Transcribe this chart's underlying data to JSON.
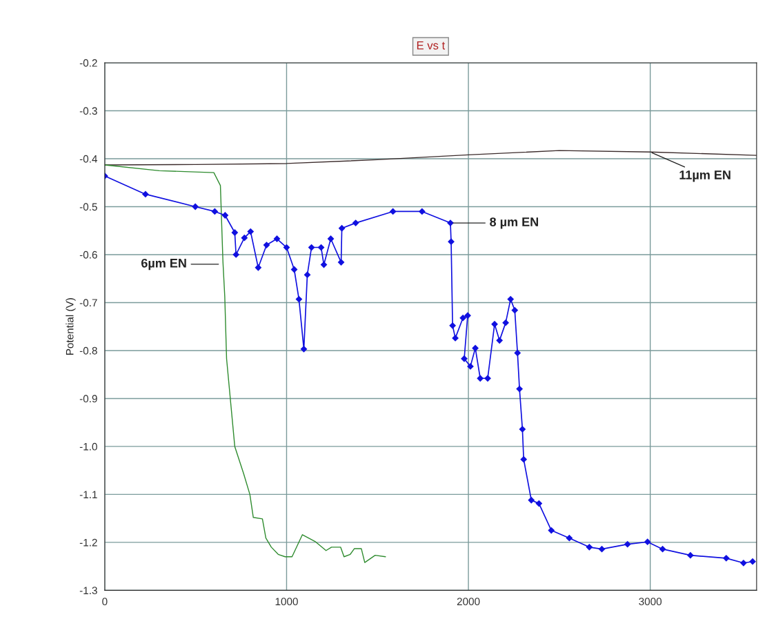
{
  "chart_data": {
    "type": "line",
    "title": "E vs t",
    "ylabel": "Potential (V)",
    "xlim": [
      0,
      3585
    ],
    "ylim": [
      -1.3,
      -0.2
    ],
    "xticks": [
      0,
      1000,
      2000,
      3000
    ],
    "yticks": [
      -1.3,
      -1.2,
      -1.1,
      {
        "value": -1.0,
        "label": "-1.0"
      },
      -0.9,
      -0.8,
      -0.7,
      -0.6,
      -0.5,
      -0.4,
      -0.3,
      -0.2
    ],
    "grid": true,
    "line_style": "solid",
    "series": [
      {
        "color": "#3a2a2a",
        "marker": "none",
        "x": [
          0,
          500,
          1000,
          1500,
          2000,
          2500,
          3000,
          3585
        ],
        "values": [
          -0.413,
          -0.412,
          -0.41,
          -0.402,
          -0.392,
          -0.383,
          -0.386,
          -0.393
        ]
      },
      {
        "color": "#2e8b2e",
        "marker": "none",
        "x": [
          0,
          300,
          600,
          636,
          650,
          660,
          670,
          715,
          764,
          798,
          817,
          867,
          886,
          916,
          954,
          992,
          1030,
          1087,
          1160,
          1217,
          1247,
          1297,
          1316,
          1350,
          1373,
          1411,
          1430,
          1487,
          1544
        ],
        "values": [
          -0.413,
          -0.425,
          -0.429,
          -0.456,
          -0.615,
          -0.687,
          -0.817,
          -1.0,
          -1.057,
          -1.1,
          -1.148,
          -1.151,
          -1.191,
          -1.21,
          -1.225,
          -1.23,
          -1.23,
          -1.184,
          -1.199,
          -1.217,
          -1.21,
          -1.21,
          -1.23,
          -1.225,
          -1.213,
          -1.213,
          -1.242,
          -1.227,
          -1.23
        ]
      },
      {
        "color": "#1010e0",
        "marker": "diamond",
        "x": [
          0,
          224,
          498,
          605,
          662,
          715,
          722,
          768,
          802,
          844,
          890,
          947,
          1000,
          1042,
          1068,
          1095,
          1114,
          1137,
          1190,
          1205,
          1243,
          1300,
          1304,
          1380,
          1585,
          1745,
          1901,
          1905,
          1913,
          1928,
          1970,
          1996,
          1977,
          2011,
          2038,
          2065,
          2106,
          2144,
          2171,
          2205,
          2232,
          2255,
          2270,
          2281,
          2297,
          2304,
          2346,
          2388,
          2456,
          2555,
          2665,
          2734,
          2875,
          2985,
          3068,
          3221,
          3418,
          3513,
          3563
        ],
        "values": [
          -0.436,
          -0.474,
          -0.5,
          -0.51,
          -0.518,
          -0.554,
          -0.6,
          -0.565,
          -0.552,
          -0.627,
          -0.58,
          -0.567,
          -0.585,
          -0.631,
          -0.693,
          -0.797,
          -0.642,
          -0.585,
          -0.585,
          -0.621,
          -0.567,
          -0.616,
          -0.545,
          -0.534,
          -0.51,
          -0.51,
          -0.534,
          -0.573,
          -0.748,
          -0.774,
          -0.732,
          -0.727,
          -0.817,
          -0.833,
          -0.795,
          -0.858,
          -0.858,
          -0.745,
          -0.779,
          -0.742,
          -0.693,
          -0.716,
          -0.805,
          -0.88,
          -0.964,
          -1.027,
          -1.112,
          -1.119,
          -1.175,
          -1.191,
          -1.21,
          -1.214,
          -1.204,
          -1.199,
          -1.214,
          -1.227,
          -1.233,
          -1.243,
          -1.24
        ]
      }
    ],
    "annotations": [
      {
        "text": "11µm EN",
        "x": 3000,
        "y": -0.386
      },
      {
        "text": "8 µm EN",
        "x": 1905,
        "y": -0.534
      },
      {
        "text": "6µm EN",
        "x": 636,
        "y": -0.62
      }
    ]
  }
}
